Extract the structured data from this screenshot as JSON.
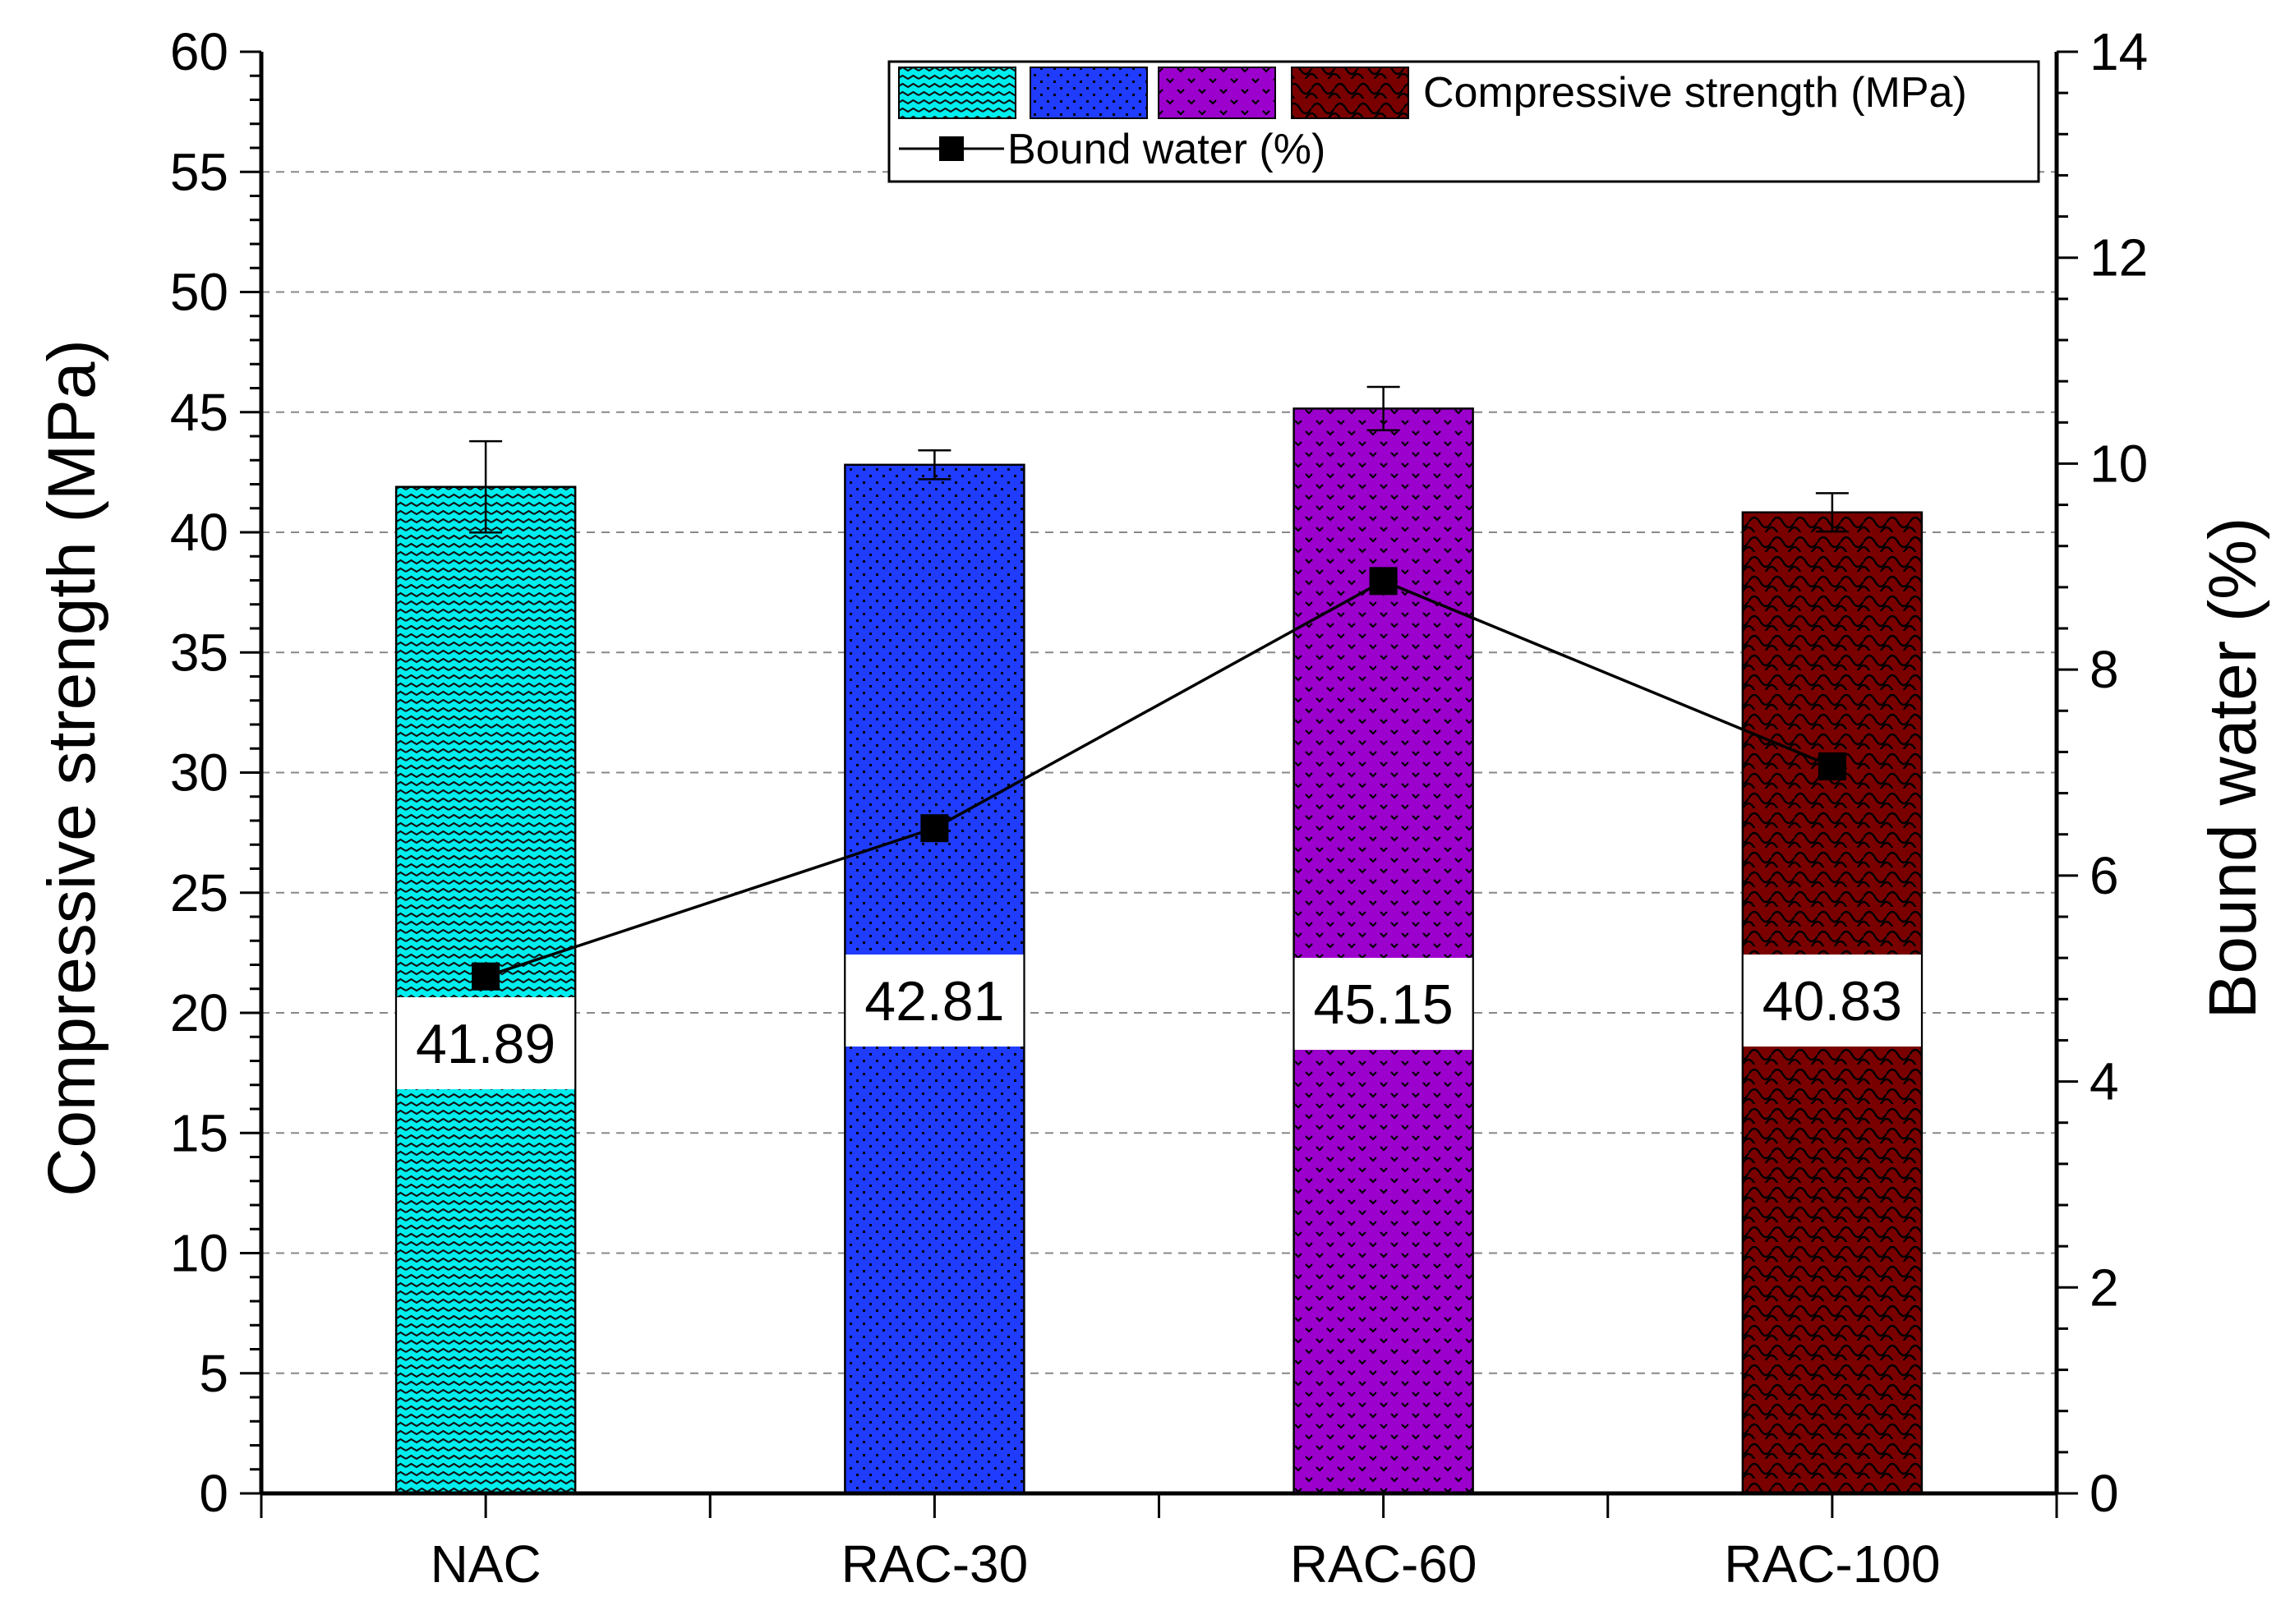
{
  "chart_data": {
    "type": "bar",
    "categories": [
      "NAC",
      "RAC-30",
      "RAC-60",
      "RAC-100"
    ],
    "series": [
      {
        "name": "Compressive strength (MPa)",
        "type": "bar",
        "axis": "left",
        "values": [
          41.89,
          42.81,
          45.15,
          40.83
        ],
        "errors": [
          1.9,
          0.6,
          0.9,
          0.8
        ],
        "labels": [
          "41.89",
          "42.81",
          "45.15",
          "40.83"
        ],
        "colors": [
          "#00eeee",
          "#1f3cff",
          "#9b00cc",
          "#7a0000"
        ]
      },
      {
        "name": "Bound water (%)",
        "type": "line",
        "axis": "right",
        "values": [
          5.02,
          6.46,
          8.86,
          7.06
        ],
        "color": "#000000"
      }
    ],
    "xlabel": "",
    "ylabel": "Compressive strength (MPa)",
    "y2label": "Bound water (%)",
    "ylim": [
      0,
      60
    ],
    "y2lim": [
      0,
      14
    ],
    "yticks": [
      "0",
      "5",
      "10",
      "15",
      "20",
      "25",
      "30",
      "35",
      "40",
      "45",
      "50",
      "55",
      "60"
    ],
    "y2ticks": [
      "0",
      "2",
      "4",
      "6",
      "8",
      "10",
      "12",
      "14"
    ],
    "grid": true,
    "legend": {
      "position": "top-right",
      "bar_entry": "Compressive strength (MPa)",
      "line_entry": "Bound water (%)"
    }
  }
}
